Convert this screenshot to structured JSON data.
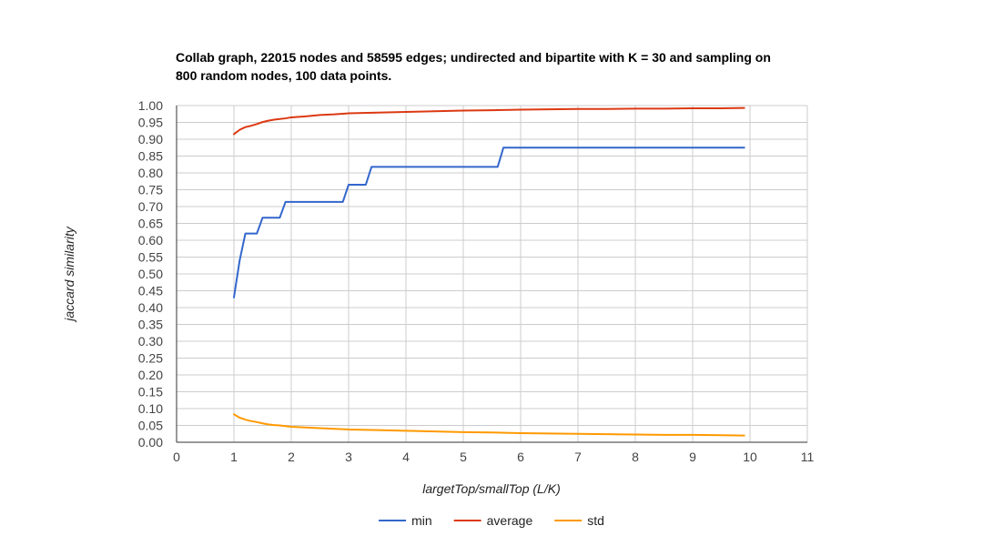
{
  "chart_data": {
    "type": "line",
    "title_lines": [
      "Collab graph, 22015 nodes and 58595 edges; undirected and bipartite with K = 30 and sampling on",
      "800 random nodes, 100 data points."
    ],
    "xlabel": "largetTop/smallTop (L/K)",
    "ylabel": "jaccard similarity",
    "xlim": [
      0,
      11
    ],
    "ylim": [
      0,
      1
    ],
    "x_ticks": [
      "0",
      "1",
      "2",
      "3",
      "4",
      "5",
      "6",
      "7",
      "8",
      "9",
      "10",
      "11"
    ],
    "y_ticks": [
      "0.00",
      "0.05",
      "0.10",
      "0.15",
      "0.20",
      "0.25",
      "0.30",
      "0.35",
      "0.40",
      "0.45",
      "0.50",
      "0.55",
      "0.60",
      "0.65",
      "0.70",
      "0.75",
      "0.80",
      "0.85",
      "0.90",
      "0.95",
      "1.00"
    ],
    "grid": true,
    "legend_position": "bottom",
    "series": [
      {
        "name": "min",
        "color": "#3366cc",
        "points": [
          [
            1.0,
            0.43
          ],
          [
            1.1,
            0.54
          ],
          [
            1.2,
            0.62
          ],
          [
            1.4,
            0.62
          ],
          [
            1.5,
            0.667
          ],
          [
            1.8,
            0.667
          ],
          [
            1.9,
            0.714
          ],
          [
            2.9,
            0.714
          ],
          [
            3.0,
            0.765
          ],
          [
            3.3,
            0.765
          ],
          [
            3.4,
            0.818
          ],
          [
            5.6,
            0.818
          ],
          [
            5.7,
            0.875
          ],
          [
            9.9,
            0.875
          ]
        ]
      },
      {
        "name": "average",
        "color": "#dc3912",
        "points": [
          [
            1.0,
            0.915
          ],
          [
            1.1,
            0.928
          ],
          [
            1.2,
            0.936
          ],
          [
            1.3,
            0.94
          ],
          [
            1.4,
            0.945
          ],
          [
            1.5,
            0.951
          ],
          [
            1.6,
            0.955
          ],
          [
            1.7,
            0.958
          ],
          [
            1.8,
            0.96
          ],
          [
            1.9,
            0.962
          ],
          [
            2.0,
            0.965
          ],
          [
            2.25,
            0.968
          ],
          [
            2.5,
            0.972
          ],
          [
            2.75,
            0.974
          ],
          [
            3.0,
            0.977
          ],
          [
            3.5,
            0.979
          ],
          [
            4.0,
            0.981
          ],
          [
            4.5,
            0.983
          ],
          [
            5.0,
            0.985
          ],
          [
            5.5,
            0.986
          ],
          [
            6.0,
            0.988
          ],
          [
            6.5,
            0.989
          ],
          [
            7.0,
            0.99
          ],
          [
            7.5,
            0.99
          ],
          [
            8.0,
            0.991
          ],
          [
            8.5,
            0.991
          ],
          [
            9.0,
            0.992
          ],
          [
            9.5,
            0.992
          ],
          [
            9.9,
            0.993
          ]
        ]
      },
      {
        "name": "std",
        "color": "#ff9900",
        "points": [
          [
            1.0,
            0.083
          ],
          [
            1.1,
            0.073
          ],
          [
            1.2,
            0.067
          ],
          [
            1.3,
            0.063
          ],
          [
            1.4,
            0.06
          ],
          [
            1.5,
            0.056
          ],
          [
            1.6,
            0.053
          ],
          [
            1.7,
            0.051
          ],
          [
            1.8,
            0.05
          ],
          [
            1.9,
            0.048
          ],
          [
            2.0,
            0.046
          ],
          [
            2.25,
            0.044
          ],
          [
            2.5,
            0.042
          ],
          [
            2.75,
            0.04
          ],
          [
            3.0,
            0.038
          ],
          [
            3.5,
            0.036
          ],
          [
            4.0,
            0.034
          ],
          [
            4.5,
            0.032
          ],
          [
            5.0,
            0.03
          ],
          [
            5.5,
            0.029
          ],
          [
            6.0,
            0.027
          ],
          [
            6.5,
            0.026
          ],
          [
            7.0,
            0.025
          ],
          [
            7.5,
            0.024
          ],
          [
            8.0,
            0.023
          ],
          [
            8.5,
            0.022
          ],
          [
            9.0,
            0.022
          ],
          [
            9.5,
            0.021
          ],
          [
            9.9,
            0.02
          ]
        ]
      }
    ]
  }
}
